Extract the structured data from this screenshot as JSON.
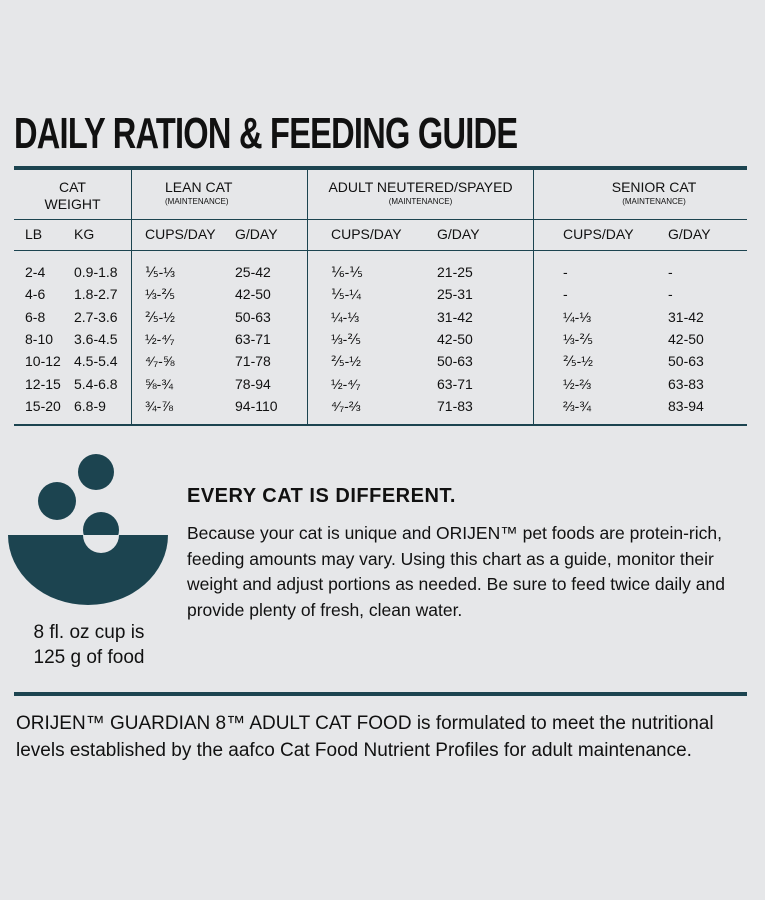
{
  "title": "DAILY RATION & FEEDING GUIDE",
  "table": {
    "groups": [
      {
        "label": "CAT",
        "label2": "WEIGHT",
        "note": ""
      },
      {
        "label": "LEAN CAT",
        "note": "(MAINTENANCE)"
      },
      {
        "label": "ADULT NEUTERED/SPAYED",
        "note": "(MAINTENANCE)"
      },
      {
        "label": "SENIOR CAT",
        "note": "(MAINTENANCE)"
      }
    ],
    "subheaders": [
      "LB",
      "KG",
      "CUPS/DAY",
      "G/DAY",
      "CUPS/DAY",
      "G/DAY",
      "CUPS/DAY",
      "G/DAY"
    ],
    "rows": [
      [
        "2-4",
        "0.9-1.8",
        "⅕-⅓",
        "25-42",
        "⅙-⅕",
        "21-25",
        "-",
        "-"
      ],
      [
        "4-6",
        "1.8-2.7",
        "⅓-⅖",
        "42-50",
        "⅕-¼",
        "25-31",
        "-",
        "-"
      ],
      [
        "6-8",
        "2.7-3.6",
        "⅖-½",
        "50-63",
        "¼-⅓",
        "31-42",
        "¼-⅓",
        "31-42"
      ],
      [
        "8-10",
        "3.6-4.5",
        "½-⁴⁄₇",
        "63-71",
        "⅓-⅖",
        "42-50",
        "⅓-⅖",
        "42-50"
      ],
      [
        "10-12",
        "4.5-5.4",
        "⁴⁄₇-⅝",
        "71-78",
        "⅖-½",
        "50-63",
        "⅖-½",
        "50-63"
      ],
      [
        "12-15",
        "5.4-6.8",
        "⅝-¾",
        "78-94",
        "½-⁴⁄₇",
        "63-71",
        "½-⅔",
        "63-83"
      ],
      [
        "15-20",
        "6.8-9",
        "¾-⅞",
        "94-110",
        "⁴⁄₇-⅔",
        "71-83",
        "⅔-¾",
        "83-94"
      ]
    ]
  },
  "cup_note": {
    "line1": "8 fl. oz cup is",
    "line2": "125 g of food"
  },
  "info": {
    "heading": "EVERY CAT IS DIFFERENT.",
    "body": "Because your cat is unique and ORIJEN™ pet foods are protein-rich, feeding amounts may vary. Using this chart as a guide, monitor their weight and adjust portions as needed. Be sure to feed twice daily and provide plenty of fresh, clean water."
  },
  "footer": "ORIJEN™ GUARDIAN 8™ ADULT CAT FOOD is formulated to meet the nutritional levels established by the aafco Cat Food Nutrient Profiles for adult maintenance.",
  "colors": {
    "accent": "#1c4450",
    "background": "#e6e7e9"
  },
  "icons": {
    "bowl": "food-bowl-icon"
  }
}
